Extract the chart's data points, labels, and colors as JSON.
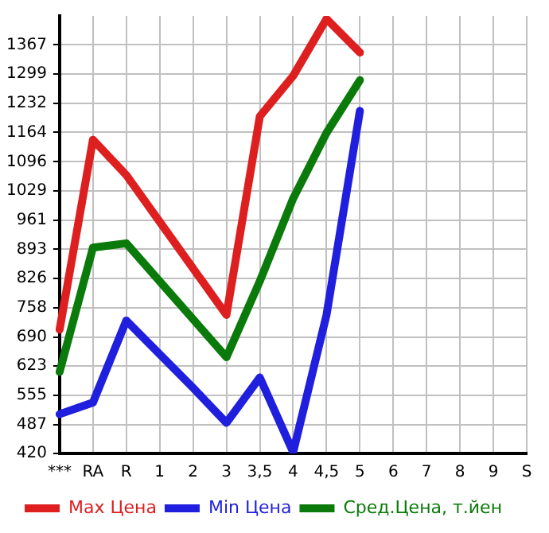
{
  "chart_data": {
    "type": "line",
    "categories": [
      "***",
      "RA",
      "R",
      "1",
      "2",
      "3",
      "3,5",
      "4",
      "4,5",
      "5",
      "6",
      "7",
      "8",
      "9",
      "S"
    ],
    "series": [
      {
        "name": "Max Цена",
        "color": "#dd1f1f",
        "values": [
          707,
          1147,
          1065,
          957,
          849,
          741,
          1201,
          1295,
          1427,
          1349,
          null,
          null,
          null,
          null,
          null
        ]
      },
      {
        "name": "Min Цена",
        "color": "#1f1fdd",
        "values": [
          511,
          538,
          728,
          650,
          572,
          491,
          596,
          423,
          741,
          1214,
          null,
          null,
          null,
          null,
          null
        ]
      },
      {
        "name": "Сред.Цена, т.йен",
        "color": "#0a7a0a",
        "values": [
          609,
          897,
          907,
          819,
          731,
          643,
          819,
          1011,
          1163,
          1285,
          null,
          null,
          null,
          null,
          null
        ]
      }
    ],
    "ylim": [
      420,
      1434
    ],
    "yticks": [
      420,
      487,
      555,
      623,
      690,
      758,
      826,
      893,
      961,
      1029,
      1096,
      1164,
      1232,
      1299,
      1367
    ],
    "grid": true,
    "legend": "bottom",
    "marker": "none",
    "line_style": "solid"
  }
}
